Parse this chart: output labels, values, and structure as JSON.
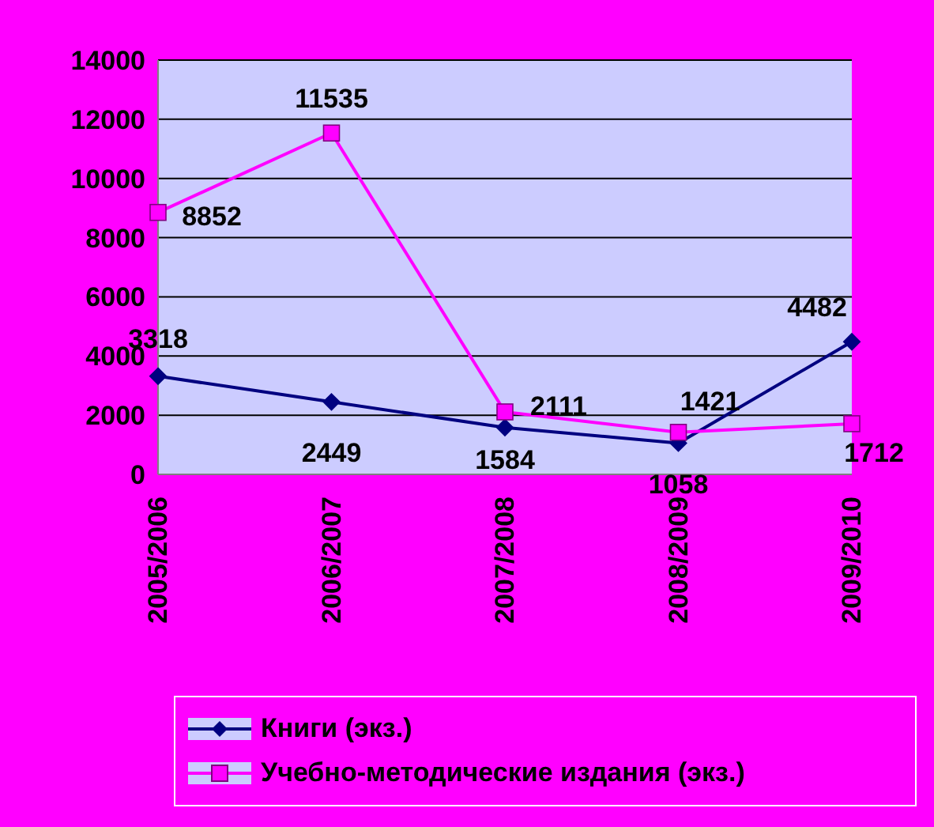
{
  "chart_data": {
    "type": "line",
    "categories": [
      "2005/2006",
      "2006/2007",
      "2007/2008",
      "2008/2009",
      "2009/2010"
    ],
    "series": [
      {
        "name": "Книги (экз.)",
        "color": "#000080",
        "values": [
          3318,
          2449,
          1584,
          1058,
          4482
        ],
        "marker": "diamond"
      },
      {
        "name": "Учебно-методические издания (экз.)",
        "color": "#ff00ff",
        "values": [
          8852,
          11535,
          2111,
          1421,
          1712
        ],
        "marker": "square"
      }
    ],
    "ylim": [
      0,
      14000
    ],
    "yticks": [
      0,
      2000,
      4000,
      6000,
      8000,
      10000,
      12000,
      14000
    ],
    "grid": "y",
    "legend": "bottom",
    "data_labels": true
  }
}
